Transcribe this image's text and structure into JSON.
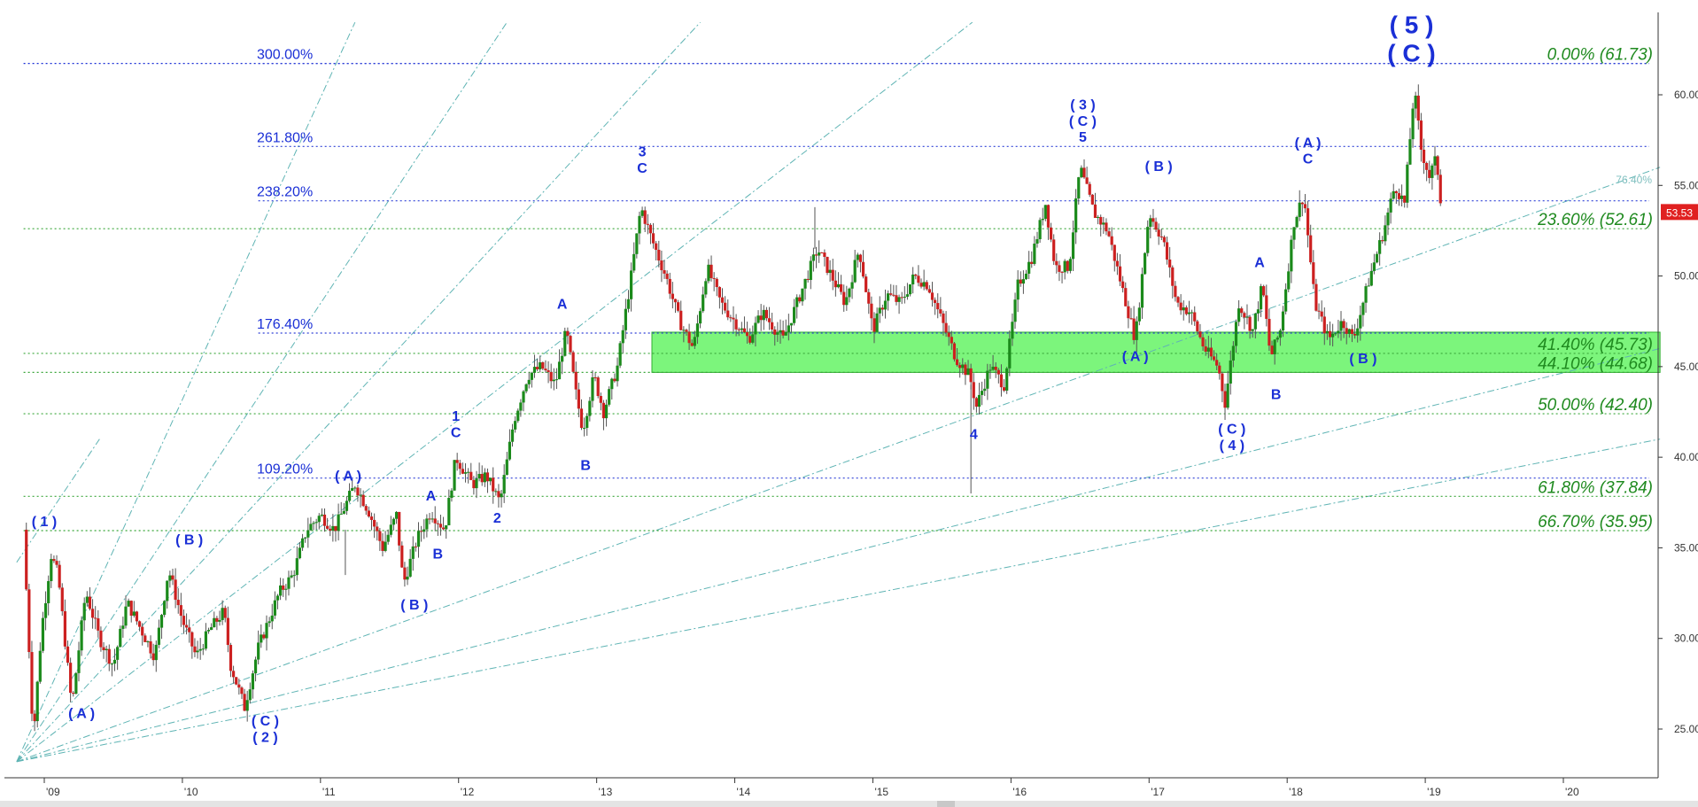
{
  "chart_data": {
    "type": "candlestick",
    "ylim": [
      22.5,
      64.0
    ],
    "x_ticks": [
      "'09",
      "'10",
      "'11",
      "'12",
      "'13",
      "'14",
      "'15",
      "'16",
      "'17",
      "'18",
      "'19",
      "'20"
    ],
    "y_ticks": [
      "25.00",
      "30.00",
      "35.00",
      "40.00",
      "45.00",
      "50.00",
      "55.00",
      "60.00"
    ],
    "last_price": "53.53",
    "close_path": [
      [
        2008.85,
        36.0
      ],
      [
        2008.92,
        24.5
      ],
      [
        2008.98,
        30.5
      ],
      [
        2009.05,
        34.6
      ],
      [
        2009.1,
        33.5
      ],
      [
        2009.2,
        26.2
      ],
      [
        2009.3,
        32.6
      ],
      [
        2009.4,
        30.0
      ],
      [
        2009.5,
        28.5
      ],
      [
        2009.6,
        32.0
      ],
      [
        2009.7,
        30.5
      ],
      [
        2009.8,
        29.0
      ],
      [
        2009.9,
        33.8
      ],
      [
        2010.0,
        31.0
      ],
      [
        2010.1,
        29.0
      ],
      [
        2010.2,
        30.5
      ],
      [
        2010.3,
        31.5
      ],
      [
        2010.35,
        28.5
      ],
      [
        2010.45,
        26.2
      ],
      [
        2010.55,
        29.5
      ],
      [
        2010.7,
        32.5
      ],
      [
        2010.8,
        33.5
      ],
      [
        2010.9,
        36.0
      ],
      [
        2011.0,
        36.8
      ],
      [
        2011.1,
        36.0
      ],
      [
        2011.25,
        38.5
      ],
      [
        2011.35,
        37.0
      ],
      [
        2011.45,
        35.0
      ],
      [
        2011.55,
        36.8
      ],
      [
        2011.6,
        33.0
      ],
      [
        2011.7,
        35.5
      ],
      [
        2011.8,
        37.0
      ],
      [
        2011.9,
        36.0
      ],
      [
        2011.98,
        40.0
      ],
      [
        2012.1,
        38.5
      ],
      [
        2012.2,
        39.0
      ],
      [
        2012.3,
        37.5
      ],
      [
        2012.4,
        42.0
      ],
      [
        2012.5,
        44.5
      ],
      [
        2012.6,
        45.0
      ],
      [
        2012.7,
        44.0
      ],
      [
        2012.78,
        47.0
      ],
      [
        2012.85,
        43.5
      ],
      [
        2012.9,
        41.5
      ],
      [
        2012.98,
        44.5
      ],
      [
        2013.05,
        42.5
      ],
      [
        2013.15,
        45.0
      ],
      [
        2013.25,
        50.0
      ],
      [
        2013.32,
        53.8
      ],
      [
        2013.4,
        52.0
      ],
      [
        2013.5,
        50.0
      ],
      [
        2013.6,
        47.5
      ],
      [
        2013.7,
        46.0
      ],
      [
        2013.8,
        50.5
      ],
      [
        2013.9,
        48.5
      ],
      [
        2014.0,
        47.5
      ],
      [
        2014.1,
        46.5
      ],
      [
        2014.2,
        48.0
      ],
      [
        2014.35,
        46.5
      ],
      [
        2014.5,
        49.5
      ],
      [
        2014.6,
        51.5
      ],
      [
        2014.7,
        50.0
      ],
      [
        2014.8,
        48.5
      ],
      [
        2014.9,
        51.5
      ],
      [
        2015.0,
        47.0
      ],
      [
        2015.1,
        49.0
      ],
      [
        2015.2,
        48.5
      ],
      [
        2015.3,
        50.0
      ],
      [
        2015.4,
        49.5
      ],
      [
        2015.5,
        47.5
      ],
      [
        2015.6,
        45.5
      ],
      [
        2015.7,
        44.5
      ],
      [
        2015.75,
        42.8
      ],
      [
        2015.85,
        45.0
      ],
      [
        2015.95,
        44.0
      ],
      [
        2016.05,
        49.5
      ],
      [
        2016.15,
        51.0
      ],
      [
        2016.25,
        54.0
      ],
      [
        2016.32,
        50.5
      ],
      [
        2016.42,
        50.5
      ],
      [
        2016.5,
        56.0
      ],
      [
        2016.6,
        53.5
      ],
      [
        2016.7,
        52.5
      ],
      [
        2016.8,
        49.5
      ],
      [
        2016.9,
        46.5
      ],
      [
        2016.95,
        50.0
      ],
      [
        2017.0,
        53.5
      ],
      [
        2017.1,
        52.0
      ],
      [
        2017.2,
        48.5
      ],
      [
        2017.3,
        48.0
      ],
      [
        2017.4,
        46.0
      ],
      [
        2017.5,
        45.0
      ],
      [
        2017.55,
        43.0
      ],
      [
        2017.65,
        48.5
      ],
      [
        2017.75,
        47.0
      ],
      [
        2017.82,
        49.5
      ],
      [
        2017.88,
        45.5
      ],
      [
        2017.95,
        47.0
      ],
      [
        2018.05,
        53.0
      ],
      [
        2018.12,
        54.5
      ],
      [
        2018.2,
        48.5
      ],
      [
        2018.3,
        46.5
      ],
      [
        2018.4,
        47.5
      ],
      [
        2018.48,
        46.5
      ],
      [
        2018.6,
        50.0
      ],
      [
        2018.7,
        52.5
      ],
      [
        2018.78,
        55.0
      ],
      [
        2018.85,
        54.0
      ],
      [
        2018.92,
        60.3
      ],
      [
        2018.97,
        57.0
      ],
      [
        2019.03,
        55.5
      ],
      [
        2019.08,
        56.5
      ],
      [
        2019.12,
        53.5
      ]
    ],
    "green_zone": {
      "x_start": 2013.4,
      "x_end": 2020.7,
      "y_low": 44.68,
      "y_high": 46.9
    },
    "fib_right": [
      {
        "label": "0.00% (61.73)",
        "value": 61.73
      },
      {
        "label": "23.60% (52.61)",
        "value": 52.61
      },
      {
        "label": "41.40% (45.73)",
        "value": 45.73
      },
      {
        "label": "44.10% (44.68)",
        "value": 44.68
      },
      {
        "label": "50.00% (42.40)",
        "value": 42.4
      },
      {
        "label": "61.80% (37.84)",
        "value": 37.84
      },
      {
        "label": "66.70% (35.95)",
        "value": 35.95
      }
    ],
    "fib_left": [
      {
        "label": "300.00%",
        "value": 61.73
      },
      {
        "label": "261.80%",
        "value": 57.15
      },
      {
        "label": "238.20%",
        "value": 54.15
      },
      {
        "label": "176.40%",
        "value": 46.85
      },
      {
        "label": "109.20%",
        "value": 38.85
      }
    ],
    "gann_label": "76.40%",
    "wave_labels": [
      {
        "lines": [
          "( 5 )",
          "( C )"
        ],
        "x": 2018.9,
        "y": 63.4,
        "size": 28
      },
      {
        "lines": [
          "( 1 )"
        ],
        "x": 2009.0,
        "y": 36.2,
        "size": 16
      },
      {
        "lines": [
          "( A )"
        ],
        "x": 2009.27,
        "y": 25.6,
        "size": 16
      },
      {
        "lines": [
          "( B )"
        ],
        "x": 2010.05,
        "y": 35.2,
        "size": 16
      },
      {
        "lines": [
          "( C )",
          "( 2 )"
        ],
        "x": 2010.6,
        "y": 25.2,
        "size": 16
      },
      {
        "lines": [
          "( A )"
        ],
        "x": 2011.2,
        "y": 38.7,
        "size": 16
      },
      {
        "lines": [
          "A"
        ],
        "x": 2011.8,
        "y": 37.6,
        "size": 16
      },
      {
        "lines": [
          "B"
        ],
        "x": 2011.85,
        "y": 34.4,
        "size": 16
      },
      {
        "lines": [
          "( B )"
        ],
        "x": 2011.68,
        "y": 31.6,
        "size": 16
      },
      {
        "lines": [
          "1",
          "C"
        ],
        "x": 2011.98,
        "y": 42.0,
        "size": 16
      },
      {
        "lines": [
          "2"
        ],
        "x": 2012.28,
        "y": 36.4,
        "size": 16
      },
      {
        "lines": [
          "A"
        ],
        "x": 2012.75,
        "y": 48.2,
        "size": 16
      },
      {
        "lines": [
          "B"
        ],
        "x": 2012.92,
        "y": 39.3,
        "size": 16
      },
      {
        "lines": [
          "3",
          "C"
        ],
        "x": 2013.33,
        "y": 56.6,
        "size": 16
      },
      {
        "lines": [
          "4"
        ],
        "x": 2015.73,
        "y": 41.0,
        "size": 16
      },
      {
        "lines": [
          "( 3 )",
          "( C )",
          "5"
        ],
        "x": 2016.52,
        "y": 59.2,
        "size": 16
      },
      {
        "lines": [
          "( B )"
        ],
        "x": 2017.07,
        "y": 55.8,
        "size": 16
      },
      {
        "lines": [
          "( A )"
        ],
        "x": 2016.9,
        "y": 45.3,
        "size": 16
      },
      {
        "lines": [
          "( C )",
          "( 4 )"
        ],
        "x": 2017.6,
        "y": 41.3,
        "size": 16
      },
      {
        "lines": [
          "A"
        ],
        "x": 2017.8,
        "y": 50.5,
        "size": 16
      },
      {
        "lines": [
          "B"
        ],
        "x": 2017.92,
        "y": 43.2,
        "size": 16
      },
      {
        "lines": [
          "( A )",
          "C"
        ],
        "x": 2018.15,
        "y": 57.1,
        "size": 16
      },
      {
        "lines": [
          "( B )"
        ],
        "x": 2018.55,
        "y": 45.2,
        "size": 16
      }
    ]
  }
}
